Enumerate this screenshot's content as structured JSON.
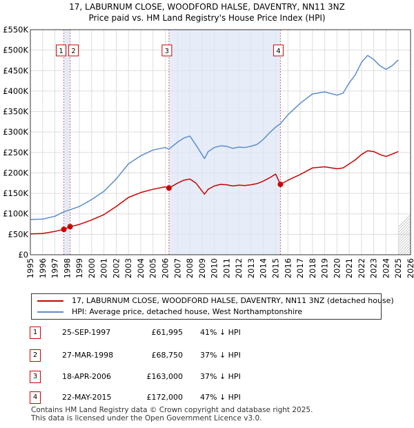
{
  "chart_data": {
    "type": "line",
    "title": "17, LABURNUM CLOSE, WOODFORD HALSE, DAVENTRY, NN11 3NZ",
    "subtitle": "Price paid vs. HM Land Registry's House Price Index (HPI)",
    "xlabel": "",
    "ylabel": "",
    "xlim": [
      1995,
      2026
    ],
    "ylim": [
      0,
      550000
    ],
    "y_ticks": [
      {
        "value": 0,
        "label": "£0"
      },
      {
        "value": 50000,
        "label": "£50K"
      },
      {
        "value": 100000,
        "label": "£100K"
      },
      {
        "value": 150000,
        "label": "£150K"
      },
      {
        "value": 200000,
        "label": "£200K"
      },
      {
        "value": 250000,
        "label": "£250K"
      },
      {
        "value": 300000,
        "label": "£300K"
      },
      {
        "value": 350000,
        "label": "£350K"
      },
      {
        "value": 400000,
        "label": "£400K"
      },
      {
        "value": 450000,
        "label": "£450K"
      },
      {
        "value": 500000,
        "label": "£500K"
      },
      {
        "value": 550000,
        "label": "£550K"
      }
    ],
    "x_ticks": [
      "1995",
      "1996",
      "1997",
      "1998",
      "1999",
      "2000",
      "2001",
      "2002",
      "2003",
      "2004",
      "2005",
      "2006",
      "2007",
      "2008",
      "2009",
      "2010",
      "2011",
      "2012",
      "2013",
      "2014",
      "2015",
      "2016",
      "2017",
      "2018",
      "2019",
      "2020",
      "2021",
      "2022",
      "2023",
      "2024",
      "2025",
      "2026"
    ],
    "grid": true,
    "forecast_from": 2025.0,
    "series": [
      {
        "name": "17, LABURNUM CLOSE, WOODFORD HALSE, DAVENTRY, NN11 3NZ (detached house)",
        "color": "#cc0000",
        "x": [
          1995,
          1996,
          1997,
          1997.73,
          1998.24,
          1999,
          2000,
          2001,
          2002,
          2003,
          2004,
          2005,
          2006.0,
          2006.3,
          2007,
          2007.5,
          2008,
          2008.5,
          2009.2,
          2009.5,
          2010,
          2010.5,
          2011,
          2011.5,
          2012,
          2012.5,
          2013,
          2013.5,
          2014,
          2014.5,
          2015.0,
          2015.39,
          2016,
          2017,
          2018,
          2019,
          2020,
          2020.5,
          2021,
          2021.5,
          2022,
          2022.5,
          2023,
          2023.5,
          2024,
          2024.5,
          2025
        ],
        "y": [
          51000,
          52000,
          57000,
          61995,
          68750,
          74000,
          85000,
          98000,
          118000,
          140000,
          152000,
          160000,
          166000,
          163000,
          175000,
          182000,
          185000,
          175000,
          148000,
          160000,
          168000,
          172000,
          171000,
          168000,
          170000,
          169000,
          171000,
          174000,
          180000,
          188000,
          197000,
          172000,
          182000,
          196000,
          212000,
          215000,
          210000,
          212000,
          222000,
          232000,
          245000,
          254000,
          252000,
          245000,
          240000,
          246000,
          252000
        ]
      },
      {
        "name": "HPI: Average price, detached house, West Northamptonshire",
        "color": "#5b8ccc",
        "x": [
          1995,
          1996,
          1997,
          1997.73,
          1998.24,
          1999,
          2000,
          2001,
          2002,
          2003,
          2004,
          2005,
          2006.0,
          2006.3,
          2007,
          2007.5,
          2008,
          2008.5,
          2009.2,
          2009.5,
          2010,
          2010.5,
          2011,
          2011.5,
          2012,
          2012.5,
          2013,
          2013.5,
          2014,
          2014.5,
          2015.0,
          2015.39,
          2016,
          2017,
          2018,
          2019,
          2020,
          2020.5,
          2021,
          2021.5,
          2022,
          2022.5,
          2023,
          2023.5,
          2024,
          2024.5,
          2025
        ],
        "y": [
          86000,
          87000,
          94000,
          105000,
          110000,
          118000,
          135000,
          155000,
          185000,
          222000,
          242000,
          256000,
          262000,
          258000,
          275000,
          285000,
          290000,
          268000,
          235000,
          252000,
          262000,
          266000,
          265000,
          260000,
          263000,
          262000,
          265000,
          270000,
          282000,
          298000,
          312000,
          320000,
          342000,
          370000,
          393000,
          398000,
          390000,
          395000,
          420000,
          440000,
          470000,
          487000,
          477000,
          462000,
          453000,
          462000,
          476000
        ]
      }
    ],
    "sales": [
      {
        "label": "1",
        "x": 1997.73,
        "y": 61995
      },
      {
        "label": "2",
        "x": 1998.24,
        "y": 68750
      },
      {
        "label": "3",
        "x": 2006.3,
        "y": 163000
      },
      {
        "label": "4",
        "x": 2015.39,
        "y": 172000
      }
    ]
  },
  "colors": {
    "price_line": "#cc0000",
    "hpi_line": "#5b8ccc",
    "highlight_band": "#dce6f5",
    "grid": "#dddddd",
    "forecast_hatch": "#bbbbbb"
  },
  "legend": {
    "price_label": "17, LABURNUM CLOSE, WOODFORD HALSE, DAVENTRY, NN11 3NZ (detached house)",
    "hpi_label": "HPI: Average price, detached house, West Northamptonshire"
  },
  "sales_table": [
    {
      "num": "1",
      "date": "25-SEP-1997",
      "price": "£61,995",
      "hpi": "41% ↓ HPI"
    },
    {
      "num": "2",
      "date": "27-MAR-1998",
      "price": "£68,750",
      "hpi": "37% ↓ HPI"
    },
    {
      "num": "3",
      "date": "18-APR-2006",
      "price": "£163,000",
      "hpi": "37% ↓ HPI"
    },
    {
      "num": "4",
      "date": "22-MAY-2015",
      "price": "£172,000",
      "hpi": "47% ↓ HPI"
    }
  ],
  "footer": {
    "line1": "Contains HM Land Registry data © Crown copyright and database right 2025.",
    "line2": "This data is licensed under the Open Government Licence v3.0."
  }
}
